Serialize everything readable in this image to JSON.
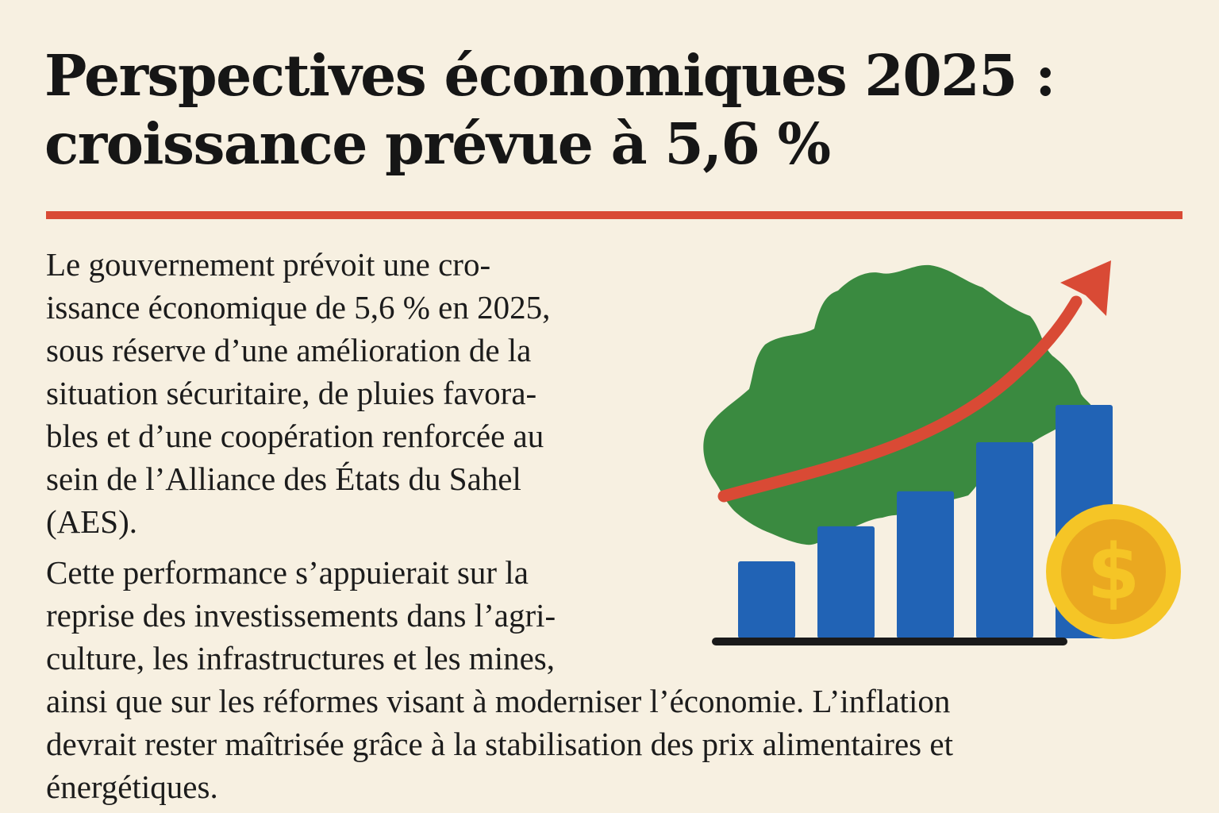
{
  "header": {
    "title_lines": [
      "Perspectives économiques 2025 :",
      "croissance prévue à 5,6 %"
    ]
  },
  "article": {
    "paragraph1_lines": [
      "Le gouvernement prévoit une cro-",
      "issance économique de 5,6 % en 2025,",
      "sous réserve d’une amélioration de la",
      "situation sécuritaire, de pluies favora-",
      "bles et d’une coopération renforcée au",
      "sein de l’Alliance des États du Sahel",
      "(AES)."
    ],
    "paragraph2_lines": [
      "Cette performance s’appuierait sur la",
      "reprise des investissements dans l’agri-",
      "culture, les infrastructures et les mines,",
      "ainsi que sur les réformes visant à moderniser l’économie. L’inflation",
      "devrait rester maîtrisée grâce à la stabilisation des prix alimentaires et",
      "énergétiques."
    ]
  },
  "illustration": {
    "coin_symbol": "$",
    "bar_levels": [
      0.33,
      0.48,
      0.63,
      0.84,
      1.0
    ],
    "colors": {
      "accent": "#d94a35",
      "map": "#3a8a40",
      "bars": "#2163b5",
      "coin_outer": "#f5c526",
      "coin_inner": "#eaa820",
      "baseline": "#1a1a1a",
      "background": "#f7f0e1"
    },
    "icons": [
      "country-map-icon",
      "growth-arrow-icon",
      "dollar-coin-icon",
      "bar-chart-icon"
    ]
  }
}
